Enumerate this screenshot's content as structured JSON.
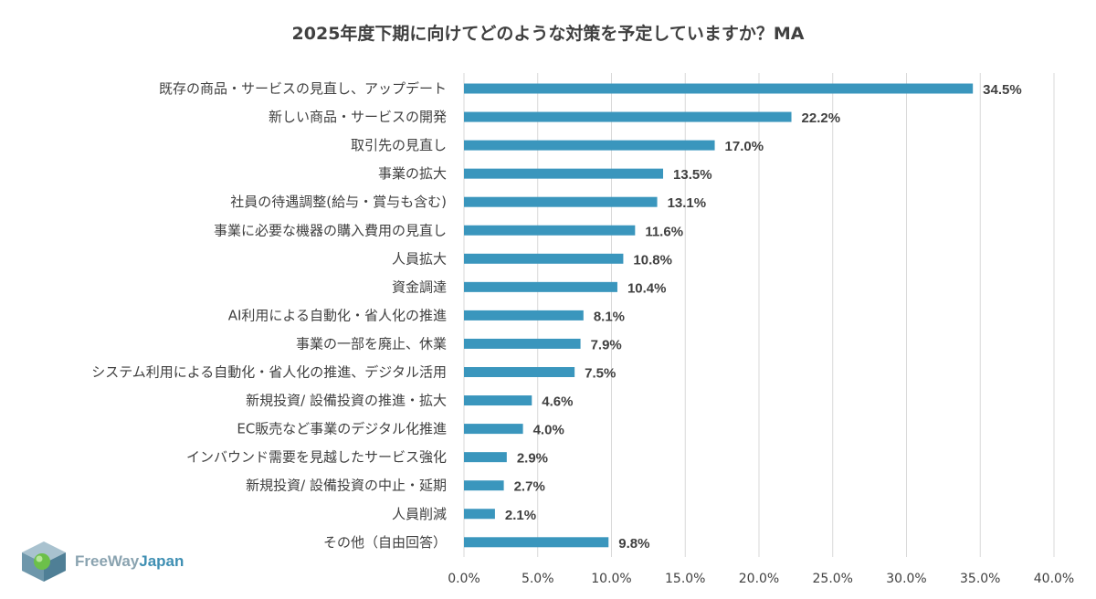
{
  "chart_data": {
    "type": "bar",
    "orientation": "horizontal",
    "title": "2025年度下期に向けてどのような対策を予定していますか？MA",
    "categories": [
      "既存の商品・サービスの見直し、アップデート",
      "新しい商品・サービスの開発",
      "取引先の見直し",
      "事業の拡大",
      "社員の待遇調整(給与・賞与も含む)",
      "事業に必要な機器の購入費用の見直し",
      "人員拡大",
      "資金調達",
      "AI利用による自動化・省人化の推進",
      "事業の一部を廃止、休業",
      "システム利用による自動化・省人化の推進、デジタル活用",
      "新規投資/ 設備投資の推進・拡大",
      "EC販売など事業のデジタル化推進",
      "インバウンド需要を見越したサービス強化",
      "新規投資/ 設備投資の中止・延期",
      "人員削減",
      "その他（自由回答）"
    ],
    "values": [
      34.5,
      22.2,
      17.0,
      13.5,
      13.1,
      11.6,
      10.8,
      10.4,
      8.1,
      7.9,
      7.5,
      4.6,
      4.0,
      2.9,
      2.7,
      2.1,
      9.8
    ],
    "value_labels": [
      "34.5%",
      "22.2%",
      "17.0%",
      "13.5%",
      "13.1%",
      "11.6%",
      "10.8%",
      "10.4%",
      "8.1%",
      "7.9%",
      "7.5%",
      "4.6%",
      "4.0%",
      "2.9%",
      "2.7%",
      "2.1%",
      "9.8%"
    ],
    "xlim": [
      0,
      40
    ],
    "xticks": [
      0,
      5,
      10,
      15,
      20,
      25,
      30,
      35,
      40
    ],
    "xtick_labels": [
      "0.0%",
      "5.0%",
      "10.0%",
      "15.0%",
      "20.0%",
      "25.0%",
      "30.0%",
      "35.0%",
      "40.0%"
    ],
    "grid": true,
    "bar_color": "#3a96bd",
    "grid_color": "#d9d9d9",
    "text_color": "#404040"
  },
  "logo": {
    "free_way_text": "FreeWay",
    "japan_text": "Japan",
    "free_way_color": "#8aa3b0",
    "japan_color": "#3f8fb3"
  }
}
